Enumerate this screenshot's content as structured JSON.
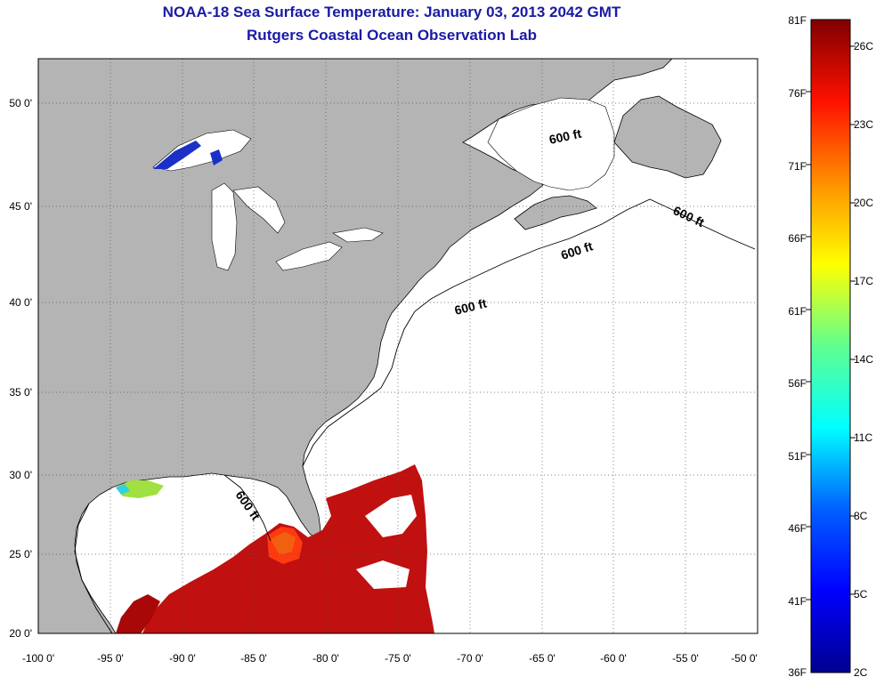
{
  "title": "NOAA-18 Sea Surface Temperature:  January 03, 2013 2042 GMT",
  "subtitle": "Rutgers Coastal Ocean Observation Lab",
  "map": {
    "lon_ticks": [
      -100,
      -95,
      -90,
      -85,
      -80,
      -75,
      -70,
      -65,
      -60,
      -55,
      -50
    ],
    "lon_labels": [
      "-100 0'",
      "-95 0'",
      "-90 0'",
      "-85 0'",
      "-80 0'",
      "-75 0'",
      "-70 0'",
      "-65 0'",
      "-60 0'",
      "-55 0'",
      "-50 0'"
    ],
    "lat_ticks": [
      20,
      25,
      30,
      35,
      40,
      45,
      50
    ],
    "lat_labels": [
      "20 0'",
      "25 0'",
      "30 0'",
      "35 0'",
      "40 0'",
      "45 0'",
      "50 0'"
    ],
    "lon_range": [
      -100,
      -50
    ],
    "lat_range": [
      20,
      52.8
    ],
    "isobath_label": "600 ft",
    "land_color": "#b4b4b4",
    "ocean_color": "#ffffff"
  },
  "colorbar": {
    "fahrenheit_labels": [
      "36F",
      "41F",
      "46F",
      "51F",
      "56F",
      "61F",
      "66F",
      "71F",
      "76F",
      "81F"
    ],
    "celsius_labels": [
      "2C",
      "5C",
      "8C",
      "11C",
      "14C",
      "17C",
      "20C",
      "23C",
      "26C"
    ],
    "colors": [
      "#00008f",
      "#0000ff",
      "#0080ff",
      "#00ffff",
      "#80ff80",
      "#ffff00",
      "#ff8000",
      "#ff0000",
      "#800000"
    ]
  }
}
